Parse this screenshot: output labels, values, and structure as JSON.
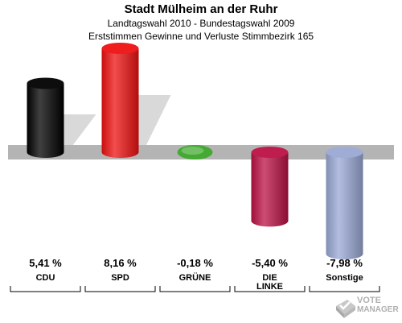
{
  "chart_data": {
    "type": "bar",
    "title": "Stadt Mülheim an der Ruhr",
    "subtitle_lines": [
      "Landtagswahl 2010 - Bundestagswahl 2009",
      "Erststimmen Gewinne und Verluste Stimmbezirk 165"
    ],
    "categories": [
      "CDU",
      "SPD",
      "GRÜNE",
      "DIE LINKE",
      "Sonstige"
    ],
    "category_lines": [
      [
        "CDU"
      ],
      [
        "SPD"
      ],
      [
        "GRÜNE"
      ],
      [
        "DIE",
        "LINKE"
      ],
      [
        "Sonstige"
      ]
    ],
    "values": [
      5.41,
      8.16,
      -0.18,
      -5.4,
      -7.98
    ],
    "value_labels": [
      "5,41 %",
      "8,16 %",
      "-0,18 %",
      "-5,40 %",
      "-7,98 %"
    ],
    "colors": [
      "#000000",
      "#ee1111",
      "#44aa33",
      "#bb1144",
      "#99a8d4"
    ],
    "ylim": [
      -8.16,
      8.16
    ],
    "grid": false,
    "legend": "none"
  },
  "watermark": {
    "line1": "VOTE",
    "line2": "MANAGER"
  }
}
